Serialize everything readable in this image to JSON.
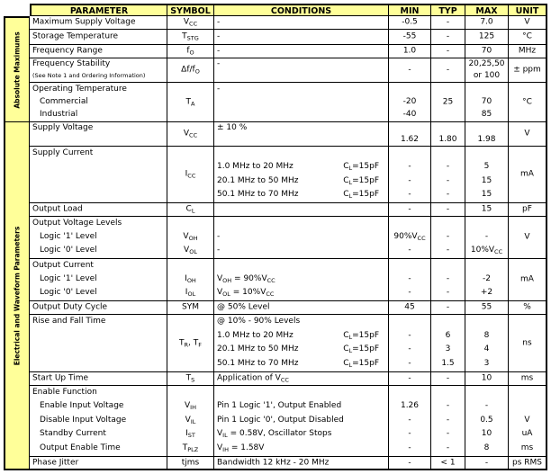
{
  "header": {
    "parameter": "PARAMETER",
    "symbol": "SYMBOL",
    "conditions": "CONDITIONS",
    "min": "MIN",
    "typ": "TYP",
    "max": "MAX",
    "unit": "UNIT"
  },
  "sections": [
    {
      "label": "Absolute Maximums",
      "rows": [
        0,
        1,
        2,
        3,
        4
      ]
    },
    {
      "label": "Electrical and Waveform Parameters",
      "rows": [
        5,
        6,
        7,
        8,
        9,
        10,
        11,
        12,
        13,
        14
      ]
    }
  ],
  "theme": {
    "highlight": "#ffff99",
    "border": "#000000"
  },
  "rows": [
    {
      "param": {
        "title": "Maximum Supply Voltage"
      },
      "symbol": [
        "V_{CC}"
      ],
      "conditions": [
        "-"
      ],
      "min": [
        "-0.5"
      ],
      "typ": [
        "-"
      ],
      "max": [
        "7.0"
      ],
      "unit": [
        "V"
      ]
    },
    {
      "param": {
        "title": "Storage Temperature"
      },
      "symbol": [
        "T_{STG}"
      ],
      "conditions": [
        "-"
      ],
      "min": [
        "-55"
      ],
      "typ": [
        "-"
      ],
      "max": [
        "125"
      ],
      "unit": [
        "°C"
      ]
    },
    {
      "param": {
        "title": "Frequency Range"
      },
      "symbol": [
        "f_{O}"
      ],
      "conditions": [
        "-"
      ],
      "min": [
        "1.0"
      ],
      "typ": [
        "-"
      ],
      "max": [
        "70"
      ],
      "unit": [
        "MHz"
      ]
    },
    {
      "param": {
        "title": "Frequency Stability",
        "note": "(See Note 1 and Ordering Information)"
      },
      "symbol": [
        "Δf/f_{O}"
      ],
      "conditions": [
        "-"
      ],
      "min": [
        "-"
      ],
      "typ": [
        "-"
      ],
      "max": [
        "20,25,50",
        "or 100"
      ],
      "unit": [
        "± ppm"
      ]
    },
    {
      "param": {
        "title": "Operating Temperature",
        "items": [
          "Commercial",
          "Industrial"
        ]
      },
      "symbol": [
        "T_{A}"
      ],
      "conditions": [
        "-"
      ],
      "min": [
        "",
        "-20",
        "-40"
      ],
      "typ": [
        "25"
      ],
      "max": [
        "",
        "70",
        "85"
      ],
      "unit": [
        "°C"
      ]
    },
    {
      "param": {
        "title": "Supply Voltage"
      },
      "symbol": [
        "V_{CC}"
      ],
      "conditions": [
        "± 10 %"
      ],
      "min": [
        "",
        "1.62"
      ],
      "typ": [
        "",
        "1.80"
      ],
      "max": [
        "",
        "1.98"
      ],
      "unit": [
        "V"
      ]
    },
    {
      "param": {
        "title": "Supply Current"
      },
      "symbol": [
        "I_{CC}"
      ],
      "conditions": [
        "",
        {
          "l": "1.0 MHz to 20 MHz",
          "r": "C_{L}=15pF"
        },
        {
          "l": "20.1 MHz to 50 MHz",
          "r": "C_{L}=15pF"
        },
        {
          "l": "50.1 MHz to 70 MHz",
          "r": "C_{L}=15pF"
        }
      ],
      "min": [
        "",
        "-",
        "-",
        "-"
      ],
      "typ": [
        "",
        "-",
        "-",
        "-"
      ],
      "max": [
        "",
        "5",
        "15",
        "15"
      ],
      "unit": [
        "mA"
      ]
    },
    {
      "param": {
        "title": "Output Load"
      },
      "symbol": [
        "C_{L}"
      ],
      "conditions": [
        ""
      ],
      "min": [
        "-"
      ],
      "typ": [
        "-"
      ],
      "max": [
        "15"
      ],
      "unit": [
        "pF"
      ]
    },
    {
      "param": {
        "title": "Output Voltage Levels",
        "items": [
          "Logic '1' Level",
          "Logic '0' Level"
        ]
      },
      "symbol": [
        "",
        "V_{OH}",
        "V_{OL}"
      ],
      "conditions": [
        "",
        "-",
        "-"
      ],
      "min": [
        "",
        "90%V_{CC}",
        "-"
      ],
      "typ": [
        "",
        "-",
        "-"
      ],
      "max": [
        "",
        "-",
        "10%V_{CC}"
      ],
      "unit": [
        "V"
      ]
    },
    {
      "param": {
        "title": "Output Current",
        "items": [
          "Logic '1' Level",
          "Logic '0' Level"
        ]
      },
      "symbol": [
        "",
        "I_{OH}",
        "I_{OL}"
      ],
      "conditions": [
        "",
        "V_{OH} = 90%V_{CC}",
        "V_{OL} = 10%V_{CC}"
      ],
      "min": [
        "",
        "-",
        "-"
      ],
      "typ": [
        "",
        "-",
        "-"
      ],
      "max": [
        "",
        "-2",
        "+2"
      ],
      "unit": [
        "mA"
      ]
    },
    {
      "param": {
        "title": "Output Duty Cycle"
      },
      "symbol": [
        "SYM"
      ],
      "conditions": [
        "@ 50% Level"
      ],
      "min": [
        "45"
      ],
      "typ": [
        "-"
      ],
      "max": [
        "55"
      ],
      "unit": [
        "%"
      ]
    },
    {
      "param": {
        "title": "Rise and Fall Time"
      },
      "symbol": [
        "T_{R}, T_{F}"
      ],
      "conditions": [
        "@ 10% - 90% Levels",
        {
          "l": "1.0 MHz to 20 MHz",
          "r": "C_{L}=15pF"
        },
        {
          "l": "20.1 MHz to 50 MHz",
          "r": "C_{L}=15pF"
        },
        {
          "l": "50.1 MHz to 70 MHz",
          "r": "C_{L}=15pF"
        }
      ],
      "min": [
        "",
        "-",
        "-",
        "-"
      ],
      "typ": [
        "",
        "6",
        "3",
        "1.5"
      ],
      "max": [
        "",
        "8",
        "4",
        "3"
      ],
      "unit": [
        "ns"
      ]
    },
    {
      "param": {
        "title": "Start Up Time"
      },
      "symbol": [
        "T_{S}"
      ],
      "conditions": [
        "Application of V_{CC}"
      ],
      "min": [
        "-"
      ],
      "typ": [
        "-"
      ],
      "max": [
        "10"
      ],
      "unit": [
        "ms"
      ]
    },
    {
      "param": {
        "title": "Enable Function",
        "items": [
          "Enable Input Voltage",
          "Disable Input Voltage",
          "Standby Current",
          "Output Enable Time"
        ]
      },
      "symbol": [
        "",
        "V_{IH}",
        "V_{IL}",
        "I_{ST}",
        "T_{PLZ}"
      ],
      "conditions": [
        "",
        "Pin 1 Logic '1', Output Enabled",
        "Pin 1 Logic '0', Output Disabled",
        "V_{IL} = 0.58V, Oscillator Stops",
        "V_{IH} = 1.58V"
      ],
      "min": [
        "",
        "1.26",
        "-",
        "-",
        "-"
      ],
      "typ": [
        "",
        "-",
        "-",
        "-",
        "-"
      ],
      "max": [
        "",
        "-",
        "0.5",
        "10",
        "8"
      ],
      "unit": [
        "",
        "",
        "V",
        "uA",
        "ms"
      ]
    },
    {
      "param": {
        "title": "Phase Jitter"
      },
      "symbol": [
        "tjms"
      ],
      "conditions": [
        "Bandwidth 12 kHz - 20 MHz"
      ],
      "min": [
        "-"
      ],
      "typ": [
        "< 1"
      ],
      "max": [
        "-"
      ],
      "unit": [
        "ps RMS"
      ]
    }
  ]
}
